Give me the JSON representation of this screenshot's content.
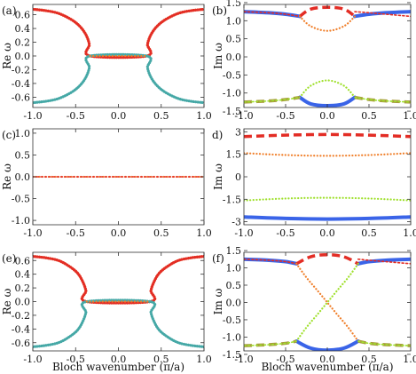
{
  "colors": {
    "red": "#e32d25",
    "orange": "#f07f2a",
    "lightgreen": "#9fe02c",
    "blue": "#3a64e8",
    "teal": "#45a8a6",
    "olive": "#a69a3c",
    "axis": "#333333"
  },
  "chart_data": [
    {
      "panel": "(a)",
      "type": "line",
      "ylabel": "Re ω",
      "xlim": [
        -1.0,
        1.0
      ],
      "ylim": [
        -0.75,
        0.75
      ],
      "xticks": [
        "-1.0",
        "-0.5",
        "0.0",
        "0.5",
        "1.0"
      ],
      "yticks": [
        "0.6",
        "0.4",
        "0.2",
        "0.0",
        "-0.2",
        "-0.4",
        "-0.6"
      ],
      "ytick_values": [
        0.6,
        0.4,
        0.2,
        0.0,
        -0.2,
        -0.4,
        -0.6
      ],
      "xlabel": "",
      "series": [
        {
          "color": "orange",
          "style": "dense-dots",
          "x": [
            -1.0,
            -0.85,
            -0.7,
            -0.55,
            -0.45,
            -0.38,
            -0.34,
            -0.33,
            0.33,
            0.34,
            0.38,
            0.45,
            0.55,
            0.7,
            0.85,
            1.0
          ],
          "y": [
            0.68,
            0.66,
            0.62,
            0.53,
            0.43,
            0.31,
            0.17,
            0.0,
            0.0,
            0.17,
            0.31,
            0.43,
            0.53,
            0.62,
            0.66,
            0.68
          ]
        },
        {
          "color": "red",
          "style": "dense-dots",
          "x": [
            -1.0,
            -0.85,
            -0.7,
            -0.55,
            -0.45,
            -0.38,
            -0.34,
            -0.33,
            0.33,
            0.34,
            0.38,
            0.45,
            0.55,
            0.7,
            0.85,
            1.0
          ],
          "y": [
            0.68,
            0.66,
            0.62,
            0.53,
            0.43,
            0.31,
            0.17,
            0.0,
            0.0,
            0.17,
            0.31,
            0.43,
            0.53,
            0.62,
            0.66,
            0.68
          ]
        },
        {
          "color": "teal",
          "style": "dense-dots",
          "x": [
            -1.0,
            -0.85,
            -0.7,
            -0.55,
            -0.45,
            -0.38,
            -0.34,
            -0.33,
            0.33,
            0.34,
            0.38,
            0.45,
            0.55,
            0.7,
            0.85,
            1.0
          ],
          "y": [
            -0.68,
            -0.66,
            -0.62,
            -0.53,
            -0.43,
            -0.31,
            -0.17,
            0.0,
            0.0,
            -0.17,
            -0.31,
            -0.43,
            -0.53,
            -0.62,
            -0.66,
            -0.68
          ]
        },
        {
          "color": "orange",
          "style": "dots",
          "x": [
            -0.33,
            -0.2,
            0.0,
            0.2,
            0.33
          ],
          "y": [
            0.0,
            0.0,
            0.0,
            0.0,
            0.0
          ]
        }
      ]
    },
    {
      "panel": "(b)",
      "type": "line",
      "ylabel": "Im ω",
      "xlim": [
        -1.0,
        1.0
      ],
      "ylim": [
        -1.4,
        1.45
      ],
      "xticks": [
        "-1.0",
        "-0.5",
        "0.0",
        "0.5",
        "1.0"
      ],
      "yticks": [
        "1.5",
        "1.0",
        "0.5",
        "0.0",
        "-0.5",
        "-1.0",
        "-1.5"
      ],
      "ytick_values": [
        1.5,
        1.0,
        0.5,
        0.0,
        -0.5,
        -1.0,
        -1.5
      ],
      "xlabel": "",
      "series": [
        {
          "color": "blue",
          "style": "solid",
          "x": [
            -1.0,
            -0.7,
            -0.5,
            -0.33
          ],
          "y": [
            1.25,
            1.22,
            1.18,
            1.12
          ]
        },
        {
          "color": "blue",
          "style": "solid",
          "x": [
            0.33,
            0.5,
            0.7,
            1.0
          ],
          "y": [
            1.12,
            1.18,
            1.22,
            1.25
          ]
        },
        {
          "color": "red",
          "style": "dotted",
          "x": [
            -1.0,
            -0.7,
            -0.5,
            -0.33
          ],
          "y": [
            1.25,
            1.22,
            1.18,
            1.12
          ]
        },
        {
          "color": "red",
          "style": "dotted",
          "x": [
            0.33,
            0.5,
            0.7,
            1.0
          ],
          "y": [
            1.25,
            1.22,
            1.18,
            1.12
          ]
        },
        {
          "color": "red",
          "style": "dashed",
          "x": [
            -0.33,
            -0.2,
            0.0,
            0.2,
            0.33
          ],
          "y": [
            1.12,
            1.32,
            1.37,
            1.32,
            1.12
          ]
        },
        {
          "color": "orange",
          "style": "dots",
          "x": [
            -0.33,
            -0.2,
            0.0,
            0.2,
            0.33
          ],
          "y": [
            1.12,
            0.85,
            0.72,
            0.85,
            1.12
          ]
        },
        {
          "color": "lightgreen",
          "style": "dots",
          "x": [
            -0.33,
            -0.2,
            0.0,
            0.2,
            0.33
          ],
          "y": [
            -1.12,
            -0.8,
            -0.65,
            -0.8,
            -1.12
          ]
        },
        {
          "color": "blue",
          "style": "solid",
          "x": [
            -0.33,
            -0.2,
            0.0,
            0.2,
            0.33
          ],
          "y": [
            -1.12,
            -1.3,
            -1.35,
            -1.3,
            -1.12
          ]
        },
        {
          "color": "olive",
          "style": "dashed",
          "x": [
            -1.0,
            -0.7,
            -0.5,
            -0.33
          ],
          "y": [
            -1.25,
            -1.22,
            -1.18,
            -1.12
          ]
        },
        {
          "color": "olive",
          "style": "dashed",
          "x": [
            0.33,
            0.5,
            0.7,
            1.0
          ],
          "y": [
            -1.12,
            -1.18,
            -1.22,
            -1.25
          ]
        },
        {
          "color": "lightgreen",
          "style": "dotted",
          "x": [
            -1.0,
            -0.7,
            -0.5,
            -0.33
          ],
          "y": [
            -1.25,
            -1.22,
            -1.18,
            -1.12
          ]
        },
        {
          "color": "lightgreen",
          "style": "dotted",
          "x": [
            0.33,
            0.5,
            0.7,
            1.0
          ],
          "y": [
            -1.12,
            -1.18,
            -1.22,
            -1.25
          ]
        }
      ]
    },
    {
      "panel": "(c)",
      "type": "line",
      "ylabel": "Re ω",
      "xlim": [
        -1.0,
        1.0
      ],
      "ylim": [
        -1.1,
        1.1
      ],
      "xticks": [
        "-1.0",
        "-0.5",
        "0.0",
        "0.5",
        "1.0"
      ],
      "yticks": [
        "1.0",
        "0.5",
        "0.0",
        "-0.5",
        "-1.0"
      ],
      "ytick_values": [
        1.0,
        0.5,
        0.0,
        -0.5,
        -1.0
      ],
      "xlabel": "",
      "series": [
        {
          "color": "orange",
          "style": "dots",
          "x": [
            -1.0,
            1.0
          ],
          "y": [
            0.0,
            0.0
          ]
        },
        {
          "color": "red",
          "style": "dotted",
          "x": [
            -1.0,
            1.0
          ],
          "y": [
            0.0,
            0.0
          ]
        }
      ]
    },
    {
      "panel": "d)",
      "type": "line",
      "ylabel": "Im ω",
      "xlim": [
        -1.0,
        1.0
      ],
      "ylim": [
        -3.2,
        3.2
      ],
      "xticks": [
        "-1.0",
        "-0.5",
        "0.0",
        "0.5",
        "1.0"
      ],
      "yticks": [
        "3",
        "1.5",
        "0",
        "-1.5",
        "-3"
      ],
      "ytick_values": [
        3.0,
        1.5,
        0.0,
        -1.5,
        -3.0
      ],
      "xlabel": "",
      "series": [
        {
          "color": "red",
          "style": "dashed",
          "x": [
            -1.0,
            -0.5,
            0.0,
            0.5,
            1.0
          ],
          "y": [
            2.68,
            2.78,
            2.82,
            2.78,
            2.68
          ]
        },
        {
          "color": "orange",
          "style": "dots",
          "x": [
            -1.0,
            -0.5,
            0.0,
            0.5,
            1.0
          ],
          "y": [
            1.58,
            1.45,
            1.4,
            1.45,
            1.58
          ]
        },
        {
          "color": "lightgreen",
          "style": "dots",
          "x": [
            -1.0,
            -0.5,
            0.0,
            0.5,
            1.0
          ],
          "y": [
            -1.58,
            -1.45,
            -1.4,
            -1.45,
            -1.58
          ]
        },
        {
          "color": "blue",
          "style": "solid",
          "x": [
            -1.0,
            -0.5,
            0.0,
            0.5,
            1.0
          ],
          "y": [
            -2.68,
            -2.78,
            -2.82,
            -2.78,
            -2.68
          ]
        }
      ]
    },
    {
      "panel": "(e)",
      "type": "line",
      "ylabel": "Re ω",
      "xlim": [
        -1.0,
        1.0
      ],
      "ylim": [
        -0.72,
        0.72
      ],
      "xticks": [
        "-1.0",
        "-0.5",
        "0.0",
        "0.5",
        "1.0"
      ],
      "yticks": [
        "0.6",
        "0.4",
        "0.2",
        "0.0",
        "-0.2",
        "-0.4",
        "-0.6"
      ],
      "ytick_values": [
        0.6,
        0.4,
        0.2,
        0.0,
        -0.2,
        -0.4,
        -0.6
      ],
      "xlabel": "Bloch wavenumber (π/a)",
      "series": [
        {
          "color": "orange",
          "style": "dense-dots",
          "x": [
            -1.0,
            -0.85,
            -0.7,
            -0.58,
            -0.48,
            -0.42,
            -0.38,
            -0.37,
            0.37,
            0.38,
            0.42,
            0.48,
            0.58,
            0.7,
            0.85,
            1.0
          ],
          "y": [
            0.66,
            0.64,
            0.6,
            0.52,
            0.42,
            0.3,
            0.16,
            0.0,
            0.0,
            0.16,
            0.3,
            0.42,
            0.52,
            0.6,
            0.64,
            0.66
          ]
        },
        {
          "color": "red",
          "style": "dense-dots",
          "x": [
            -1.0,
            -0.85,
            -0.7,
            -0.58,
            -0.48,
            -0.42,
            -0.38,
            -0.37,
            0.37,
            0.38,
            0.42,
            0.48,
            0.58,
            0.7,
            0.85,
            1.0
          ],
          "y": [
            0.66,
            0.64,
            0.6,
            0.52,
            0.42,
            0.3,
            0.16,
            0.0,
            0.0,
            0.16,
            0.3,
            0.42,
            0.52,
            0.6,
            0.64,
            0.66
          ]
        },
        {
          "color": "teal",
          "style": "dense-dots",
          "x": [
            -1.0,
            -0.85,
            -0.7,
            -0.58,
            -0.48,
            -0.42,
            -0.38,
            -0.37,
            0.37,
            0.38,
            0.42,
            0.48,
            0.58,
            0.7,
            0.85,
            1.0
          ],
          "y": [
            -0.66,
            -0.64,
            -0.6,
            -0.52,
            -0.42,
            -0.3,
            -0.16,
            0.0,
            0.0,
            -0.16,
            -0.3,
            -0.42,
            -0.52,
            -0.6,
            -0.64,
            -0.66
          ]
        },
        {
          "color": "orange",
          "style": "dots",
          "x": [
            -0.37,
            -0.2,
            0.0,
            0.2,
            0.37
          ],
          "y": [
            0.0,
            0.0,
            0.0,
            0.0,
            0.0
          ]
        }
      ]
    },
    {
      "panel": "(f)",
      "type": "line",
      "ylabel": "Im ω",
      "xlim": [
        -1.0,
        1.0
      ],
      "ylim": [
        -1.4,
        1.45
      ],
      "xticks": [
        "-1.0",
        "-0.5",
        "0.0",
        "0.5",
        "1.0"
      ],
      "yticks": [
        "1.5",
        "1.0",
        "0.5",
        "0.0",
        "-0.5",
        "-1.0",
        "-1.5"
      ],
      "ytick_values": [
        1.5,
        1.0,
        0.5,
        0.0,
        -0.5,
        -1.0,
        -1.5
      ],
      "xlabel": "Bloch wavenumber (π/a)",
      "series": [
        {
          "color": "blue",
          "style": "solid",
          "x": [
            -1.0,
            -0.7,
            -0.5,
            -0.37
          ],
          "y": [
            1.25,
            1.22,
            1.18,
            1.12
          ]
        },
        {
          "color": "blue",
          "style": "solid",
          "x": [
            0.37,
            0.5,
            0.7,
            1.0
          ],
          "y": [
            1.12,
            1.18,
            1.22,
            1.25
          ]
        },
        {
          "color": "red",
          "style": "dotted",
          "x": [
            -1.0,
            -0.7,
            -0.5,
            -0.37
          ],
          "y": [
            1.25,
            1.22,
            1.18,
            1.12
          ]
        },
        {
          "color": "red",
          "style": "dotted",
          "x": [
            0.37,
            0.5,
            0.7,
            1.0
          ],
          "y": [
            1.25,
            1.22,
            1.18,
            1.12
          ]
        },
        {
          "color": "red",
          "style": "dashed",
          "x": [
            -0.37,
            -0.2,
            0.0,
            0.2,
            0.37
          ],
          "y": [
            1.12,
            1.32,
            1.38,
            1.32,
            1.12
          ]
        },
        {
          "color": "orange",
          "style": "dots",
          "x": [
            -0.37,
            -0.25,
            -0.12,
            0.0,
            0.12,
            0.25,
            0.37
          ],
          "y": [
            1.12,
            0.72,
            0.35,
            0.0,
            -0.35,
            -0.72,
            -1.12
          ]
        },
        {
          "color": "lightgreen",
          "style": "dots",
          "x": [
            -0.37,
            -0.25,
            -0.12,
            0.0,
            0.12,
            0.25,
            0.37
          ],
          "y": [
            -1.12,
            -0.72,
            -0.35,
            0.0,
            0.35,
            0.72,
            1.12
          ]
        },
        {
          "color": "blue",
          "style": "solid",
          "x": [
            -0.37,
            -0.2,
            0.0,
            0.2,
            0.37
          ],
          "y": [
            -1.12,
            -1.32,
            -1.38,
            -1.32,
            -1.12
          ]
        },
        {
          "color": "olive",
          "style": "dashed",
          "x": [
            -1.0,
            -0.7,
            -0.5,
            -0.37
          ],
          "y": [
            -1.25,
            -1.22,
            -1.18,
            -1.12
          ]
        },
        {
          "color": "olive",
          "style": "dashed",
          "x": [
            0.37,
            0.5,
            0.7,
            1.0
          ],
          "y": [
            -1.12,
            -1.18,
            -1.22,
            -1.25
          ]
        },
        {
          "color": "lightgreen",
          "style": "dotted",
          "x": [
            -1.0,
            -0.7,
            -0.5,
            -0.37
          ],
          "y": [
            -1.25,
            -1.22,
            -1.18,
            -1.12
          ]
        },
        {
          "color": "lightgreen",
          "style": "dotted",
          "x": [
            0.37,
            0.5,
            0.7,
            1.0
          ],
          "y": [
            -1.12,
            -1.18,
            -1.22,
            -1.25
          ]
        }
      ]
    }
  ]
}
